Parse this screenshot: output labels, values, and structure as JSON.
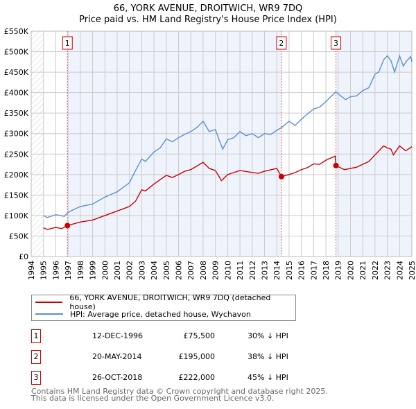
{
  "title": "66, YORK AVENUE, DROITWICH, WR9 7DQ",
  "subtitle": "Price paid vs. HM Land Registry's House Price Index (HPI)",
  "chart_data": {
    "type": "line",
    "xlim": [
      1994,
      2025
    ],
    "ylim": [
      0,
      550000
    ],
    "yticks": [
      {
        "v": 0,
        "label": "£0"
      },
      {
        "v": 50000,
        "label": "£50K"
      },
      {
        "v": 100000,
        "label": "£100K"
      },
      {
        "v": 150000,
        "label": "£150K"
      },
      {
        "v": 200000,
        "label": "£200K"
      },
      {
        "v": 250000,
        "label": "£250K"
      },
      {
        "v": 300000,
        "label": "£300K"
      },
      {
        "v": 350000,
        "label": "£350K"
      },
      {
        "v": 400000,
        "label": "£400K"
      },
      {
        "v": 450000,
        "label": "£450K"
      },
      {
        "v": 500000,
        "label": "£500K"
      },
      {
        "v": 550000,
        "label": "£550K"
      }
    ],
    "xticks": [
      "1994",
      "1995",
      "1996",
      "1997",
      "1998",
      "1999",
      "2000",
      "2001",
      "2002",
      "2003",
      "2004",
      "2005",
      "2006",
      "2007",
      "2008",
      "2009",
      "2010",
      "2011",
      "2012",
      "2013",
      "2014",
      "2015",
      "2016",
      "2017",
      "2018",
      "2019",
      "2020",
      "2021",
      "2022",
      "2023",
      "2024",
      "2025"
    ],
    "series": [
      {
        "name": "66, YORK AVENUE, DROITWICH, WR9 7DQ (detached house)",
        "color": "#cc0000",
        "x": [
          1995,
          1995.3,
          1996,
          1996.5,
          1996.95,
          1998,
          1999,
          2000,
          2001,
          2002,
          2002.5,
          2003,
          2003.3,
          2004,
          2005,
          2005.5,
          2006,
          2006.5,
          2007,
          2008,
          2008.5,
          2009,
          2009.5,
          2010,
          2010.5,
          2011,
          2012,
          2012.5,
          2013,
          2014,
          2014.38,
          2015,
          2015.5,
          2016,
          2016.5,
          2017,
          2017.5,
          2018,
          2018.75,
          2018.82,
          2019.5,
          2020,
          2020.5,
          2021,
          2021.5,
          2022,
          2022.7,
          2023,
          2023.3,
          2023.5,
          2024,
          2024.5,
          2025
        ],
        "y": [
          70,
          66,
          71,
          68,
          75.5,
          84,
          89,
          100,
          111,
          122,
          135,
          163,
          160,
          177,
          198,
          193,
          200,
          208,
          212,
          230,
          215,
          210,
          185,
          200,
          205,
          210,
          205,
          203,
          208,
          215,
          195,
          200,
          205,
          212,
          217,
          226,
          225,
          235,
          245,
          222,
          212,
          215,
          218,
          225,
          232,
          248,
          270,
          265,
          262,
          248,
          270,
          258,
          268
        ]
      },
      {
        "name": "HPI: Average price, detached house, Wychavon",
        "color": "#5b8fd4",
        "x": [
          1995,
          1995.3,
          1996,
          1996.7,
          1997,
          1998,
          1999,
          2000,
          2001,
          2002,
          2002.5,
          2003,
          2003.3,
          2004,
          2004.5,
          2005,
          2005.5,
          2006,
          2006.5,
          2007,
          2007.5,
          2008,
          2008.5,
          2009,
          2009.3,
          2009.6,
          2010,
          2010.5,
          2011,
          2011.5,
          2012,
          2012.5,
          2013,
          2013.5,
          2014,
          2014.4,
          2015,
          2015.5,
          2016,
          2016.5,
          2017,
          2017.5,
          2018,
          2018.8,
          2019.3,
          2019.6,
          2020,
          2020.5,
          2021,
          2021.5,
          2022,
          2022.3,
          2022.7,
          2023,
          2023.3,
          2023.6,
          2024,
          2024.3,
          2024.6,
          2024.9,
          2025
        ],
        "y": [
          100,
          95,
          102,
          98,
          108,
          122,
          128,
          145,
          158,
          180,
          210,
          238,
          232,
          255,
          265,
          287,
          280,
          290,
          298,
          305,
          315,
          330,
          305,
          310,
          285,
          262,
          285,
          290,
          305,
          295,
          300,
          290,
          300,
          298,
          308,
          315,
          330,
          320,
          335,
          348,
          360,
          365,
          378,
          402,
          390,
          383,
          390,
          392,
          405,
          412,
          445,
          450,
          480,
          490,
          478,
          450,
          490,
          465,
          478,
          488,
          475
        ]
      }
    ],
    "sales": [
      {
        "id": "1",
        "x": 1996.95,
        "y": 75.5,
        "date": "12-DEC-1996",
        "price": "£75,500",
        "pct": "30% ↓ HPI"
      },
      {
        "id": "2",
        "x": 2014.38,
        "y": 195,
        "date": "20-MAY-2014",
        "price": "£195,000",
        "pct": "38% ↓ HPI"
      },
      {
        "id": "3",
        "x": 2018.82,
        "y": 222,
        "date": "26-OCT-2018",
        "price": "£222,000",
        "pct": "45% ↓ HPI"
      }
    ],
    "y_units": "thousands GBP for series y values"
  },
  "footer1": "Contains HM Land Registry data © Crown copyright and database right 2025.",
  "footer2": "This data is licensed under the Open Government Licence v3.0."
}
